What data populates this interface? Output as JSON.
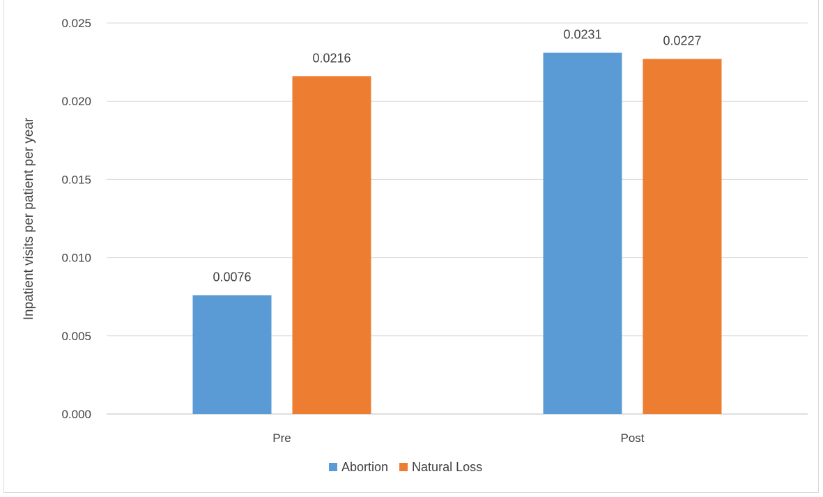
{
  "chart_data": {
    "type": "bar",
    "categories": [
      "Pre",
      "Post"
    ],
    "series": [
      {
        "name": "Abortion",
        "values": [
          0.0076,
          0.0231
        ],
        "labels": [
          "0.0076",
          "0.0231"
        ],
        "color": "#5b9bd5"
      },
      {
        "name": "Natural Loss",
        "values": [
          0.0216,
          0.0227
        ],
        "labels": [
          "0.0216",
          "0.0227"
        ],
        "color": "#ed7d31"
      }
    ],
    "title": "",
    "xlabel": "",
    "ylabel": "Inpatient visits per patient per year",
    "ylim": [
      0,
      0.025
    ],
    "yticks": [
      "0.000",
      "0.005",
      "0.010",
      "0.015",
      "0.020",
      "0.025"
    ],
    "grid": true,
    "legend_position": "bottom"
  }
}
